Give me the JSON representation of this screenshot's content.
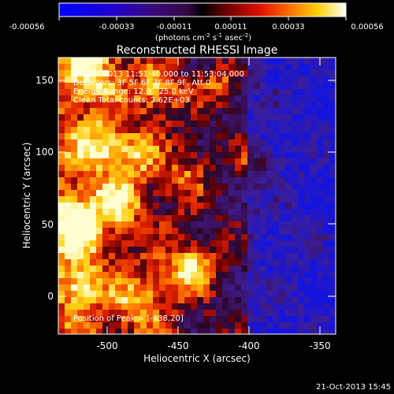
{
  "colorbar": {
    "ticks": [
      "-0.00056",
      "-0.00033",
      "-0.00011",
      "0.00011",
      "0.00033",
      "0.00056"
    ],
    "units_label": "(photons cm",
    "units_exp1": "-2",
    "units_s": " s",
    "units_exp2": "-1",
    "units_asec": " asec",
    "units_exp3": "-2",
    "units_close": ")"
  },
  "plot": {
    "title": "Reconstructed RHESSI Image",
    "xlabel": "Heliocentric X (arcsec)",
    "ylabel": "Heliocentric Y (arcsec)",
    "x_ticks": [
      "-500",
      "-450",
      "-400",
      "-350"
    ],
    "y_ticks": [
      "150",
      "100",
      "50",
      "0"
    ],
    "annotations": {
      "time_range": "21-Oct-2013 11:51:40.000 to 11:53:04.000",
      "detectors": "Detectors: 3F 5F 6F 7F 8F 9F, Att 0",
      "energy": "Energy Range: 12.0 - 25.0 keV",
      "clean": "Clean    Total counts: 2.62E+03",
      "peak": "Position of Peak = [-438,20]"
    }
  },
  "footer": {
    "timestamp": "21-Oct-2013 15:45"
  },
  "colors": {
    "background": "#000000",
    "text": "#ffffff"
  }
}
